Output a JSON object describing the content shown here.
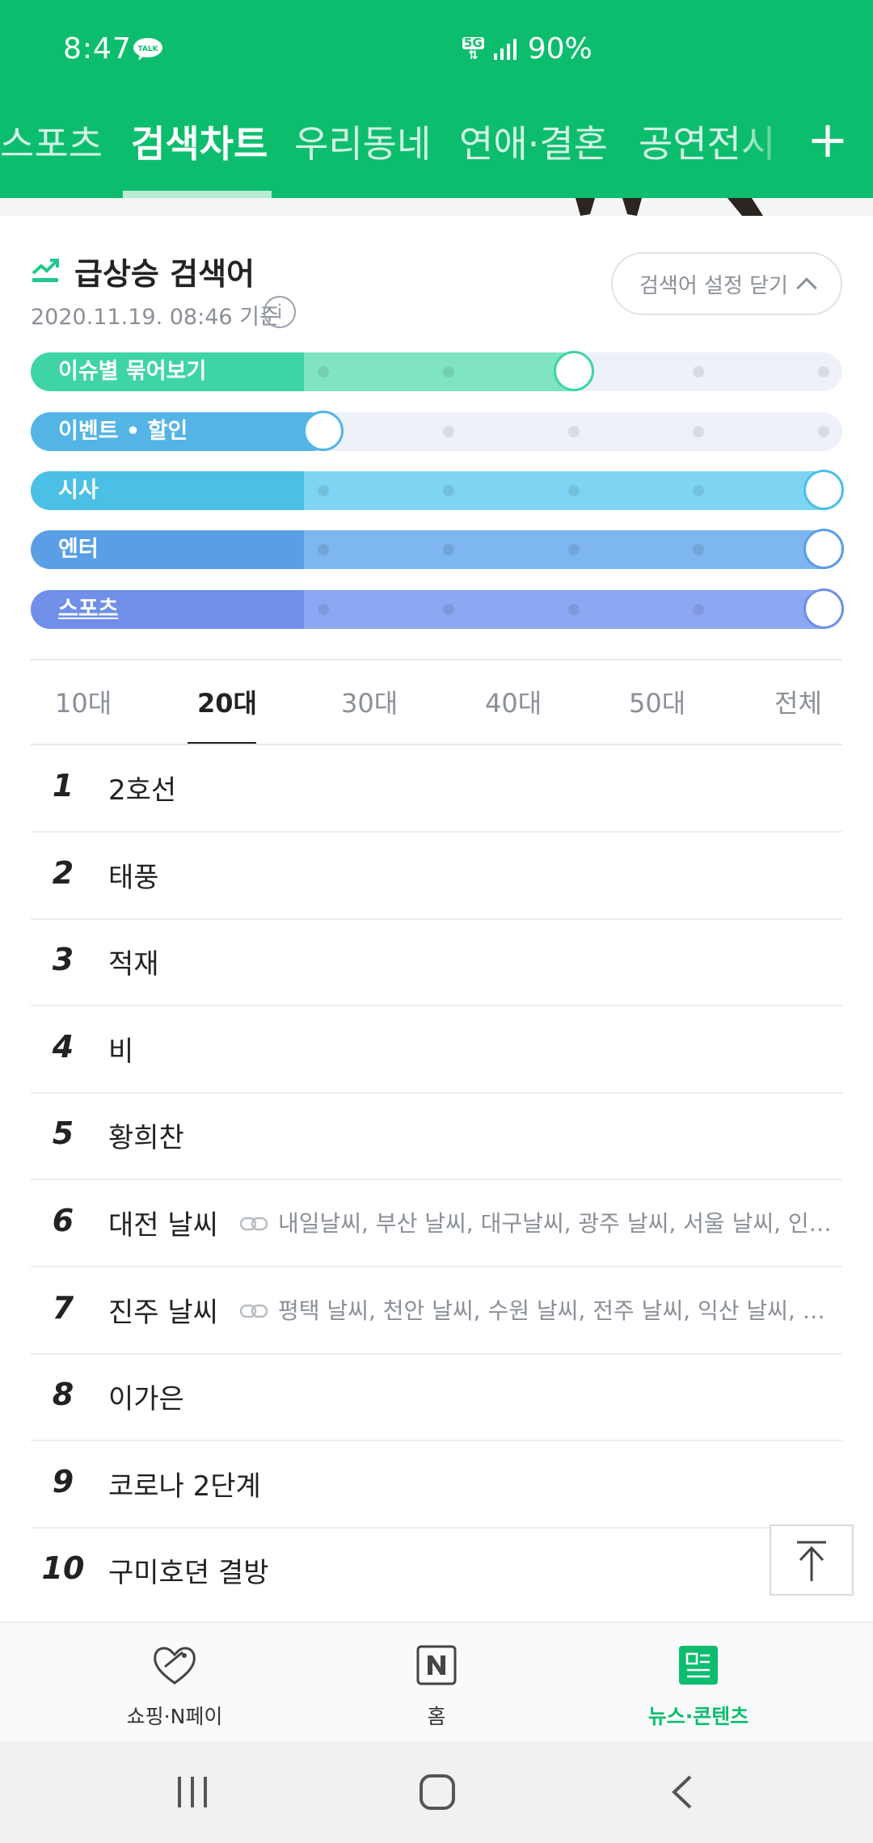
{
  "status_bar": {
    "time": "8:47",
    "talk_badge": "TALK",
    "network": "5G",
    "battery": "90%"
  },
  "tabs": [
    {
      "label": "스포츠",
      "active": false
    },
    {
      "label": "검색차트",
      "active": true
    },
    {
      "label": "우리동네",
      "active": false
    },
    {
      "label": "연애·결혼",
      "active": false
    },
    {
      "label": "공연전시",
      "active": false
    }
  ],
  "add_tab": "+",
  "card": {
    "title": "급상승 검색어",
    "date": "2020.11.19. 08:46 기준",
    "info": "i",
    "close_settings_label": "검색어 설정 닫기"
  },
  "filters": [
    {
      "label": "이슈별 묶어보기",
      "level": 2,
      "max": 5,
      "color": "#3fd4a6",
      "soft": "#7fe4c4"
    },
    {
      "label": "이벤트 • 할인",
      "level": 0,
      "max": 5,
      "color": "#55b4e6",
      "soft": "#8dd0f3"
    },
    {
      "label": "시사",
      "level": 4,
      "max": 5,
      "color": "#4bbfe6",
      "soft": "#7fd4f3"
    },
    {
      "label": "엔터",
      "level": 4,
      "max": 5,
      "color": "#5a9fe6",
      "soft": "#7db6f0"
    },
    {
      "label": "스포츠",
      "level": 4,
      "max": 5,
      "color": "#6f8fe8",
      "soft": "#8ca8f2"
    }
  ],
  "age_tabs": [
    {
      "label": "10대",
      "active": false
    },
    {
      "label": "20대",
      "active": true
    },
    {
      "label": "30대",
      "active": false
    },
    {
      "label": "40대",
      "active": false
    },
    {
      "label": "50대",
      "active": false
    },
    {
      "label": "전체",
      "active": false
    }
  ],
  "ranking": [
    {
      "rank": "1",
      "keyword": "2호선",
      "related": ""
    },
    {
      "rank": "2",
      "keyword": "태풍",
      "related": ""
    },
    {
      "rank": "3",
      "keyword": "적재",
      "related": ""
    },
    {
      "rank": "4",
      "keyword": "비",
      "related": ""
    },
    {
      "rank": "5",
      "keyword": "황희찬",
      "related": ""
    },
    {
      "rank": "6",
      "keyword": "대전 날씨",
      "related": "내일날씨, 부산 날씨, 대구날씨, 광주 날씨, 서울 날씨, 인천 날씨"
    },
    {
      "rank": "7",
      "keyword": "진주 날씨",
      "related": "평택 날씨, 천안 날씨, 수원 날씨, 전주 날씨, 익산 날씨, 안산 날씨"
    },
    {
      "rank": "8",
      "keyword": "이가은",
      "related": ""
    },
    {
      "rank": "9",
      "keyword": "코로나 2단계",
      "related": ""
    },
    {
      "rank": "10",
      "keyword": "구미호뎐 결방",
      "related": ""
    }
  ],
  "bottom_nav": [
    {
      "label": "쇼핑·N페이",
      "icon": "heart-tag-icon",
      "active": false
    },
    {
      "label": "홈",
      "icon": "naver-n-icon",
      "active": false
    },
    {
      "label": "뉴스·콘텐츠",
      "icon": "news-icon",
      "active": true
    }
  ],
  "colors": {
    "brand_green": "#0dbd6e",
    "text_dark": "#222222",
    "text_muted": "#8a8f98"
  }
}
